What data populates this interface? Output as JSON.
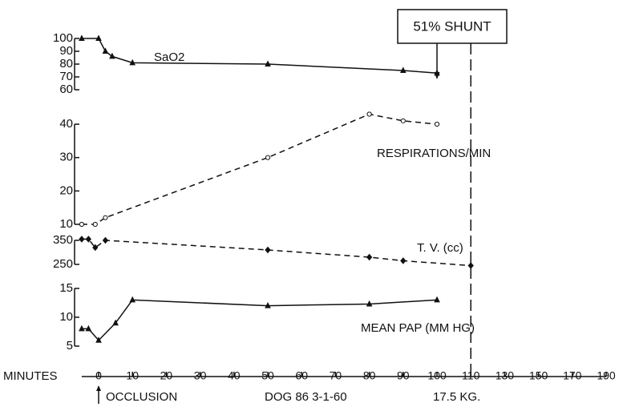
{
  "chart_data": {
    "type": "line",
    "x_label": "MINUTES",
    "xlim": [
      -5,
      190
    ],
    "xticks": [
      0,
      10,
      20,
      30,
      40,
      50,
      60,
      70,
      80,
      90,
      100,
      110,
      130,
      150,
      170,
      190
    ],
    "color": "#111111",
    "annotations": {
      "shunt": "51% SHUNT",
      "occlusion": "OCCLUSION",
      "dog": "DOG 86  3-1-60",
      "weight": "17.5 KG."
    },
    "shunt_at": 110,
    "panels": [
      {
        "label": "SaO2",
        "ylim": [
          60,
          100
        ],
        "yticks": [
          100,
          90,
          80,
          70,
          60
        ],
        "dashed": false,
        "marker": "triangle",
        "x": [
          -5,
          0,
          2,
          4,
          10,
          50,
          90,
          100
        ],
        "values": [
          100,
          100,
          90,
          86,
          81,
          80,
          75,
          73
        ]
      },
      {
        "label": "RESPIRATIONS/MIN",
        "ylim": [
          10,
          40
        ],
        "yticks": [
          40,
          30,
          20,
          10
        ],
        "dashed": true,
        "marker": "circle",
        "x": [
          -5,
          -1,
          2,
          50,
          80,
          90,
          100
        ],
        "values": [
          10,
          10,
          12,
          30,
          43,
          41,
          40
        ]
      },
      {
        "label": "T. V. (cc)",
        "ylim": [
          250,
          350
        ],
        "yticks": [
          350,
          250
        ],
        "dashed": true,
        "marker": "diamond",
        "x": [
          -5,
          -3,
          -1,
          2,
          50,
          80,
          90,
          110
        ],
        "values": [
          355,
          355,
          320,
          350,
          310,
          280,
          265,
          245
        ]
      },
      {
        "label": "MEAN PAP (MM HG)",
        "ylim": [
          5,
          15
        ],
        "yticks": [
          15,
          10,
          5
        ],
        "dashed": false,
        "marker": "triangle",
        "x": [
          -5,
          -3,
          0,
          5,
          10,
          50,
          80,
          100
        ],
        "values": [
          8,
          8,
          6,
          9,
          13,
          12,
          12.3,
          13
        ]
      }
    ]
  }
}
